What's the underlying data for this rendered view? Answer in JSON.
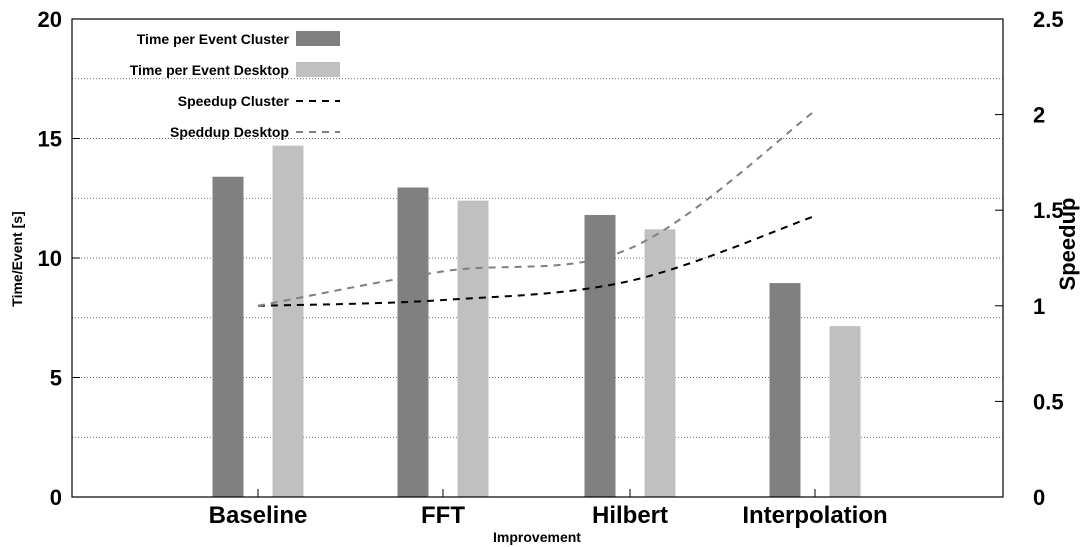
{
  "chart_data": {
    "type": "bar",
    "categories": [
      "Baseline",
      "FFT",
      "Hilbert",
      "Interpolation"
    ],
    "xlabel": "Improvement",
    "ylabel": "Time/Event [s]",
    "y2label": "Speedup",
    "ylim": [
      0,
      20
    ],
    "y2lim": [
      0,
      2.5
    ],
    "yticks": [
      0,
      5,
      10,
      15,
      20
    ],
    "y2ticks": [
      "0",
      "0.5",
      "1",
      "1.5",
      "2",
      "2.5"
    ],
    "grid": true,
    "legend_position": "top-left",
    "bar_series": [
      {
        "name": "Time per Event Cluster",
        "values": [
          13.4,
          12.95,
          11.8,
          8.95
        ],
        "color": "#808080"
      },
      {
        "name": "Time per Event Desktop",
        "values": [
          14.7,
          12.4,
          11.2,
          7.15
        ],
        "color": "#c0c0c0"
      }
    ],
    "line_series": [
      {
        "name": "Speedup Cluster",
        "values": [
          1.0,
          1.03,
          1.13,
          1.47
        ],
        "color": "#000000",
        "style": "dashed"
      },
      {
        "name": "Speddup Desktop",
        "values": [
          1.0,
          1.18,
          1.3,
          2.02
        ],
        "color": "#808080",
        "style": "dashed"
      }
    ]
  }
}
